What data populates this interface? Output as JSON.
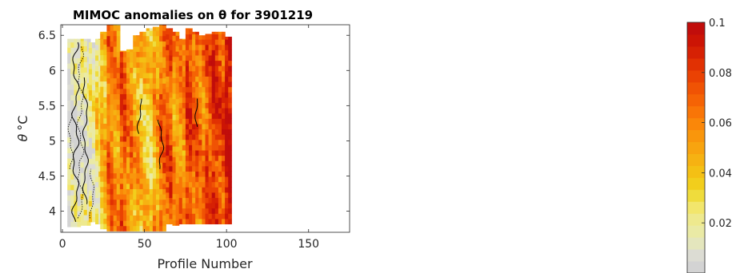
{
  "chart_data": {
    "type": "heatmap",
    "title": "MIMOC anomalies on θ  for 3901219",
    "xlabel": "Profile Number",
    "ylabel_symbol": "θ",
    "ylabel_unit": "°C",
    "xlim": [
      -1,
      175
    ],
    "ylim": [
      3.7,
      6.65
    ],
    "xticks": [
      0,
      50,
      100,
      150
    ],
    "yticks": [
      4,
      4.5,
      5,
      5.5,
      6,
      6.5
    ],
    "xtick_labels": [
      "0",
      "50",
      "100",
      "150"
    ],
    "ytick_labels": [
      "4",
      "4.5",
      "5",
      "5.5",
      "6",
      "6.5"
    ],
    "colorbar": {
      "range": [
        0,
        0.1
      ],
      "ticks": [
        0.02,
        0.04,
        0.06,
        0.08,
        0.1
      ],
      "tick_labels": [
        "0.02",
        "0.04",
        "0.06",
        "0.08",
        "0.1"
      ],
      "colors": [
        "#d3d3d3",
        "#dcdcd3",
        "#e4e6bd",
        "#eaeaa5",
        "#eee98e",
        "#f2e66c",
        "#efdc3c",
        "#f2ce1c",
        "#f4c014",
        "#f6b212",
        "#f8a40f",
        "#f9960c",
        "#fa8709",
        "#f97507",
        "#f56305",
        "#f05304",
        "#ea4203",
        "#e13103",
        "#d62104",
        "#cc1405",
        "#c10d0b"
      ]
    },
    "profile_columns": [
      {
        "x0": 3,
        "x1": 11,
        "top": 6.45,
        "bottom": 3.78,
        "level": 0.008
      },
      {
        "x0": 11,
        "x1": 16,
        "top": 6.45,
        "bottom": 3.8,
        "level": 0.012
      },
      {
        "x0": 16,
        "x1": 20,
        "top": 6.4,
        "bottom": 3.85,
        "level": 0.018
      },
      {
        "x0": 20,
        "x1": 23,
        "top": 6.45,
        "bottom": 3.82,
        "level": 0.03
      },
      {
        "x0": 23,
        "x1": 27,
        "top": 6.55,
        "bottom": 3.75,
        "level": 0.045
      },
      {
        "x0": 27,
        "x1": 31,
        "top": 6.65,
        "bottom": 3.72,
        "level": 0.065
      },
      {
        "x0": 31,
        "x1": 35,
        "top": 6.65,
        "bottom": 3.72,
        "level": 0.055
      },
      {
        "x0": 35,
        "x1": 39,
        "top": 6.28,
        "bottom": 3.72,
        "level": 0.072
      },
      {
        "x0": 39,
        "x1": 43,
        "top": 6.3,
        "bottom": 3.72,
        "level": 0.06
      },
      {
        "x0": 43,
        "x1": 47,
        "top": 6.5,
        "bottom": 3.72,
        "level": 0.05
      },
      {
        "x0": 47,
        "x1": 51,
        "top": 6.55,
        "bottom": 3.72,
        "level": 0.04
      },
      {
        "x0": 51,
        "x1": 55,
        "top": 6.6,
        "bottom": 3.72,
        "level": 0.035
      },
      {
        "x0": 55,
        "x1": 59,
        "top": 6.62,
        "bottom": 3.72,
        "level": 0.05
      },
      {
        "x0": 59,
        "x1": 63,
        "top": 6.65,
        "bottom": 3.72,
        "level": 0.068
      },
      {
        "x0": 63,
        "x1": 67,
        "top": 6.6,
        "bottom": 3.82,
        "level": 0.075
      },
      {
        "x0": 67,
        "x1": 71,
        "top": 6.55,
        "bottom": 3.8,
        "level": 0.055
      },
      {
        "x0": 71,
        "x1": 75,
        "top": 6.45,
        "bottom": 3.82,
        "level": 0.06
      },
      {
        "x0": 75,
        "x1": 79,
        "top": 6.6,
        "bottom": 3.82,
        "level": 0.08
      },
      {
        "x0": 79,
        "x1": 83,
        "top": 6.55,
        "bottom": 3.82,
        "level": 0.07
      },
      {
        "x0": 83,
        "x1": 87,
        "top": 6.5,
        "bottom": 3.82,
        "level": 0.062
      },
      {
        "x0": 87,
        "x1": 91,
        "top": 6.52,
        "bottom": 3.82,
        "level": 0.075
      },
      {
        "x0": 91,
        "x1": 95,
        "top": 6.55,
        "bottom": 3.82,
        "level": 0.085
      },
      {
        "x0": 95,
        "x1": 99,
        "top": 6.55,
        "bottom": 3.82,
        "level": 0.078
      },
      {
        "x0": 99,
        "x1": 103,
        "top": 6.48,
        "bottom": 3.82,
        "level": 0.095
      }
    ]
  }
}
